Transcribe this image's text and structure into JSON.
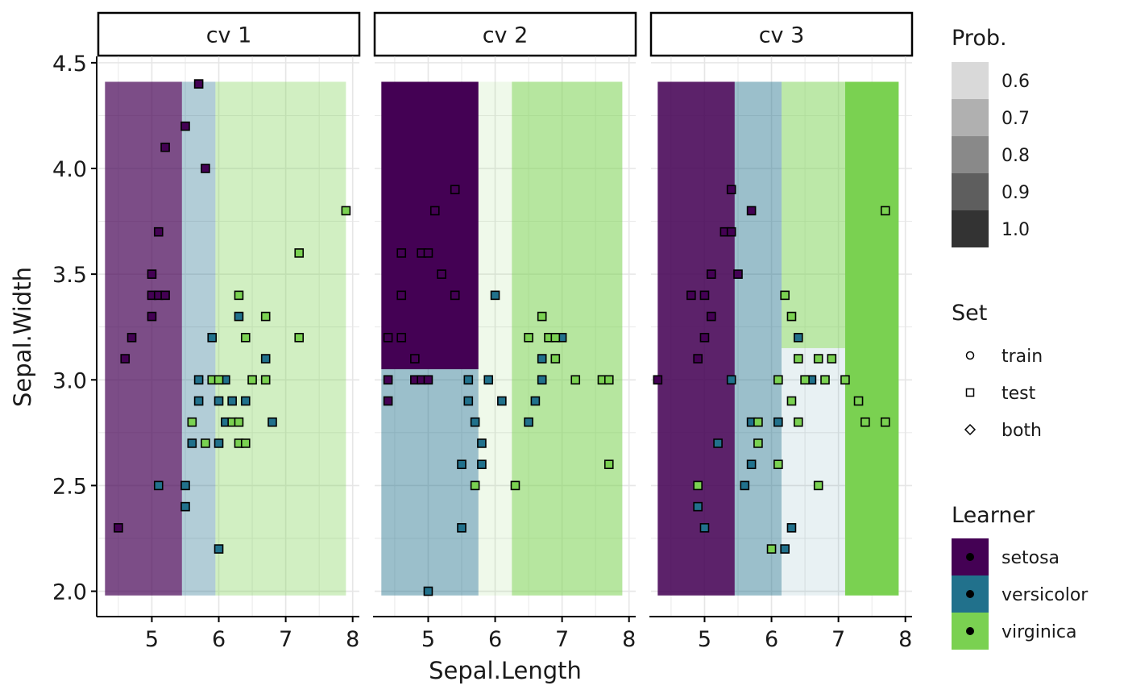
{
  "chart_data": {
    "type": "scatter",
    "xlabel": "Sepal.Length",
    "ylabel": "Sepal.Width",
    "xlim": [
      4.2,
      8.1
    ],
    "ylim": [
      1.88,
      4.53
    ],
    "x_ticks": [
      "5",
      "6",
      "7",
      "8"
    ],
    "x_tick_values": [
      5,
      6,
      7,
      8
    ],
    "y_ticks": [
      "2.0",
      "2.5",
      "3.0",
      "3.5",
      "4.0",
      "4.5"
    ],
    "y_tick_values": [
      2.0,
      2.5,
      3.0,
      3.5,
      4.0,
      4.5
    ],
    "grid": true,
    "colors": {
      "setosa": "#440154",
      "versicolor": "#21718C",
      "virginica": "#7AD151",
      "background": "#ffffff",
      "grid": "#e6e6e6"
    },
    "legend": {
      "placement": "right",
      "prob": {
        "title": "Prob.",
        "items": [
          {
            "label": "0.6",
            "color": "#d9d9d9"
          },
          {
            "label": "0.7",
            "color": "#b0b0b0"
          },
          {
            "label": "0.8",
            "color": "#898989"
          },
          {
            "label": "0.9",
            "color": "#5e5e5e"
          },
          {
            "label": "1.0",
            "color": "#333333"
          }
        ]
      },
      "set": {
        "title": "Set",
        "items": [
          {
            "label": "train",
            "shape": "circle"
          },
          {
            "label": "test",
            "shape": "square"
          },
          {
            "label": "both",
            "shape": "diamond"
          }
        ]
      },
      "learner": {
        "title": "Learner",
        "items": [
          {
            "label": "setosa",
            "color": "#440154"
          },
          {
            "label": "versicolor",
            "color": "#21718C"
          },
          {
            "label": "virginica",
            "color": "#7AD151"
          }
        ]
      }
    },
    "panels": [
      {
        "strip": "cv 1",
        "regions": [
          {
            "x0": 4.3,
            "x1": 5.45,
            "y0": 1.98,
            "y1": 4.41,
            "class": "setosa",
            "prob": 0.7
          },
          {
            "x0": 5.45,
            "x1": 5.95,
            "y0": 1.98,
            "y1": 4.41,
            "class": "versicolor",
            "prob": 0.35
          },
          {
            "x0": 5.95,
            "x1": 7.9,
            "y0": 1.98,
            "y1": 4.41,
            "class": "virginica",
            "prob": 0.35
          }
        ],
        "points": [
          [
            4.5,
            2.3,
            "setosa"
          ],
          [
            4.6,
            3.1,
            "setosa"
          ],
          [
            4.7,
            3.2,
            "setosa"
          ],
          [
            5.0,
            3.5,
            "setosa"
          ],
          [
            5.0,
            3.4,
            "setosa"
          ],
          [
            5.0,
            3.3,
            "setosa"
          ],
          [
            5.1,
            3.7,
            "setosa"
          ],
          [
            5.1,
            3.4,
            "setosa"
          ],
          [
            5.2,
            3.4,
            "setosa"
          ],
          [
            5.2,
            4.1,
            "setosa"
          ],
          [
            5.5,
            4.2,
            "setosa"
          ],
          [
            5.7,
            4.4,
            "setosa"
          ],
          [
            5.8,
            4.0,
            "setosa"
          ],
          [
            5.1,
            2.5,
            "versicolor"
          ],
          [
            5.5,
            2.5,
            "versicolor"
          ],
          [
            5.5,
            2.4,
            "versicolor"
          ],
          [
            5.6,
            2.7,
            "versicolor"
          ],
          [
            5.7,
            2.9,
            "versicolor"
          ],
          [
            5.7,
            3.0,
            "versicolor"
          ],
          [
            5.9,
            3.2,
            "versicolor"
          ],
          [
            6.0,
            2.2,
            "versicolor"
          ],
          [
            6.0,
            2.7,
            "versicolor"
          ],
          [
            6.0,
            2.9,
            "versicolor"
          ],
          [
            6.1,
            3.0,
            "versicolor"
          ],
          [
            6.1,
            2.8,
            "versicolor"
          ],
          [
            6.2,
            2.9,
            "versicolor"
          ],
          [
            6.3,
            3.3,
            "versicolor"
          ],
          [
            6.4,
            2.9,
            "versicolor"
          ],
          [
            6.7,
            3.1,
            "versicolor"
          ],
          [
            6.8,
            2.8,
            "versicolor"
          ],
          [
            5.6,
            2.8,
            "virginica"
          ],
          [
            5.8,
            2.7,
            "virginica"
          ],
          [
            5.9,
            3.0,
            "virginica"
          ],
          [
            6.0,
            3.0,
            "virginica"
          ],
          [
            6.2,
            2.8,
            "virginica"
          ],
          [
            6.3,
            2.8,
            "virginica"
          ],
          [
            6.3,
            2.7,
            "virginica"
          ],
          [
            6.3,
            3.4,
            "virginica"
          ],
          [
            6.4,
            2.7,
            "virginica"
          ],
          [
            6.4,
            3.2,
            "virginica"
          ],
          [
            6.5,
            3.0,
            "virginica"
          ],
          [
            6.7,
            3.0,
            "virginica"
          ],
          [
            6.7,
            3.3,
            "virginica"
          ],
          [
            7.2,
            3.6,
            "virginica"
          ],
          [
            7.2,
            3.2,
            "virginica"
          ],
          [
            7.9,
            3.8,
            "virginica"
          ]
        ]
      },
      {
        "strip": "cv 2",
        "regions": [
          {
            "x0": 4.3,
            "x1": 5.75,
            "y0": 3.05,
            "y1": 4.41,
            "class": "setosa",
            "prob": 1.0
          },
          {
            "x0": 4.3,
            "x1": 5.75,
            "y0": 1.98,
            "y1": 3.05,
            "class": "versicolor",
            "prob": 0.45
          },
          {
            "x0": 5.75,
            "x1": 6.25,
            "y0": 1.98,
            "y1": 4.41,
            "class": "virginica",
            "prob": 0.12
          },
          {
            "x0": 6.25,
            "x1": 7.9,
            "y0": 1.98,
            "y1": 4.41,
            "class": "virginica",
            "prob": 0.55
          }
        ],
        "points": [
          [
            4.4,
            3.2,
            "setosa"
          ],
          [
            4.4,
            3.0,
            "setosa"
          ],
          [
            4.4,
            2.9,
            "setosa"
          ],
          [
            4.6,
            3.6,
            "setosa"
          ],
          [
            4.6,
            3.4,
            "setosa"
          ],
          [
            4.6,
            3.2,
            "setosa"
          ],
          [
            4.8,
            3.1,
            "setosa"
          ],
          [
            4.8,
            3.0,
            "setosa"
          ],
          [
            4.9,
            3.6,
            "setosa"
          ],
          [
            4.9,
            3.0,
            "setosa"
          ],
          [
            5.0,
            3.6,
            "setosa"
          ],
          [
            5.0,
            3.0,
            "setosa"
          ],
          [
            5.1,
            3.8,
            "setosa"
          ],
          [
            5.2,
            3.5,
            "setosa"
          ],
          [
            5.4,
            3.9,
            "setosa"
          ],
          [
            5.4,
            3.4,
            "setosa"
          ],
          [
            5.0,
            2.0,
            "versicolor"
          ],
          [
            5.5,
            2.3,
            "versicolor"
          ],
          [
            5.5,
            2.6,
            "versicolor"
          ],
          [
            5.6,
            2.9,
            "versicolor"
          ],
          [
            5.6,
            3.0,
            "versicolor"
          ],
          [
            5.7,
            2.8,
            "versicolor"
          ],
          [
            5.8,
            2.7,
            "versicolor"
          ],
          [
            5.8,
            2.6,
            "versicolor"
          ],
          [
            5.9,
            3.0,
            "versicolor"
          ],
          [
            6.0,
            3.4,
            "versicolor"
          ],
          [
            6.1,
            2.9,
            "versicolor"
          ],
          [
            6.5,
            2.8,
            "versicolor"
          ],
          [
            6.6,
            2.9,
            "versicolor"
          ],
          [
            6.7,
            3.0,
            "versicolor"
          ],
          [
            6.7,
            3.1,
            "versicolor"
          ],
          [
            7.0,
            3.2,
            "versicolor"
          ],
          [
            5.7,
            2.5,
            "virginica"
          ],
          [
            6.3,
            2.5,
            "virginica"
          ],
          [
            6.5,
            3.2,
            "virginica"
          ],
          [
            6.7,
            3.3,
            "virginica"
          ],
          [
            6.8,
            3.2,
            "virginica"
          ],
          [
            6.9,
            3.2,
            "virginica"
          ],
          [
            6.9,
            3.1,
            "virginica"
          ],
          [
            7.2,
            3.0,
            "virginica"
          ],
          [
            7.6,
            3.0,
            "virginica"
          ],
          [
            7.7,
            3.0,
            "virginica"
          ],
          [
            7.7,
            2.6,
            "virginica"
          ]
        ]
      },
      {
        "strip": "cv 3",
        "regions": [
          {
            "x0": 4.3,
            "x1": 5.45,
            "y0": 1.98,
            "y1": 4.41,
            "class": "setosa",
            "prob": 0.87
          },
          {
            "x0": 5.45,
            "x1": 6.15,
            "y0": 1.98,
            "y1": 4.41,
            "class": "versicolor",
            "prob": 0.45
          },
          {
            "x0": 6.15,
            "x1": 7.1,
            "y0": 1.98,
            "y1": 3.15,
            "class": "versicolor",
            "prob": 0.1
          },
          {
            "x0": 6.15,
            "x1": 7.1,
            "y0": 3.15,
            "y1": 4.41,
            "class": "virginica",
            "prob": 0.5
          },
          {
            "x0": 7.1,
            "x1": 7.9,
            "y0": 1.98,
            "y1": 4.41,
            "class": "virginica",
            "prob": 1.0
          }
        ],
        "points": [
          [
            4.3,
            3.0,
            "setosa"
          ],
          [
            4.8,
            3.4,
            "setosa"
          ],
          [
            4.9,
            3.1,
            "setosa"
          ],
          [
            5.0,
            3.4,
            "setosa"
          ],
          [
            5.0,
            3.2,
            "setosa"
          ],
          [
            5.1,
            3.5,
            "setosa"
          ],
          [
            5.1,
            3.3,
            "setosa"
          ],
          [
            5.3,
            3.7,
            "setosa"
          ],
          [
            5.4,
            3.9,
            "setosa"
          ],
          [
            5.4,
            3.7,
            "setosa"
          ],
          [
            5.5,
            3.5,
            "setosa"
          ],
          [
            5.7,
            3.8,
            "setosa"
          ],
          [
            4.9,
            2.4,
            "versicolor"
          ],
          [
            5.0,
            2.3,
            "versicolor"
          ],
          [
            5.2,
            2.7,
            "versicolor"
          ],
          [
            5.4,
            3.0,
            "versicolor"
          ],
          [
            5.6,
            2.5,
            "versicolor"
          ],
          [
            5.7,
            2.8,
            "versicolor"
          ],
          [
            5.7,
            2.6,
            "versicolor"
          ],
          [
            6.1,
            2.8,
            "versicolor"
          ],
          [
            6.2,
            2.2,
            "versicolor"
          ],
          [
            6.3,
            2.3,
            "versicolor"
          ],
          [
            6.4,
            3.2,
            "versicolor"
          ],
          [
            6.6,
            3.0,
            "versicolor"
          ],
          [
            4.9,
            2.5,
            "virginica"
          ],
          [
            5.8,
            2.8,
            "virginica"
          ],
          [
            5.8,
            2.7,
            "virginica"
          ],
          [
            6.0,
            2.2,
            "virginica"
          ],
          [
            6.1,
            3.0,
            "virginica"
          ],
          [
            6.1,
            2.6,
            "virginica"
          ],
          [
            6.2,
            3.4,
            "virginica"
          ],
          [
            6.3,
            3.3,
            "virginica"
          ],
          [
            6.3,
            2.9,
            "virginica"
          ],
          [
            6.4,
            3.1,
            "virginica"
          ],
          [
            6.4,
            2.8,
            "virginica"
          ],
          [
            6.5,
            3.0,
            "virginica"
          ],
          [
            6.7,
            3.1,
            "virginica"
          ],
          [
            6.7,
            2.5,
            "virginica"
          ],
          [
            6.8,
            3.0,
            "virginica"
          ],
          [
            6.9,
            3.1,
            "virginica"
          ],
          [
            7.1,
            3.0,
            "virginica"
          ],
          [
            7.3,
            2.9,
            "virginica"
          ],
          [
            7.4,
            2.8,
            "virginica"
          ],
          [
            7.7,
            3.8,
            "virginica"
          ],
          [
            7.7,
            2.8,
            "virginica"
          ]
        ]
      }
    ]
  }
}
